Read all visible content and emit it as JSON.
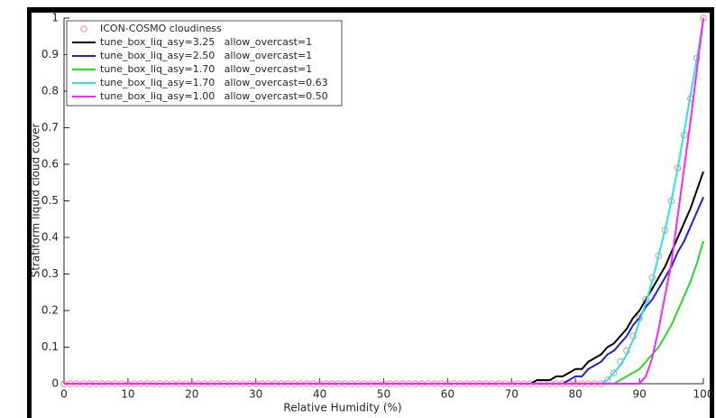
{
  "chart_data": {
    "type": "line",
    "xlabel": "Relative Humidity (%)",
    "ylabel": "Stratiform liquid cloud cover",
    "x": [
      0,
      1,
      2,
      3,
      4,
      5,
      6,
      7,
      8,
      9,
      10,
      11,
      12,
      13,
      14,
      15,
      16,
      17,
      18,
      19,
      20,
      21,
      22,
      23,
      24,
      25,
      26,
      27,
      28,
      29,
      30,
      31,
      32,
      33,
      34,
      35,
      36,
      37,
      38,
      39,
      40,
      41,
      42,
      43,
      44,
      45,
      46,
      47,
      48,
      49,
      50,
      51,
      52,
      53,
      54,
      55,
      56,
      57,
      58,
      59,
      60,
      61,
      62,
      63,
      64,
      65,
      66,
      67,
      68,
      69,
      70,
      71,
      72,
      73,
      74,
      75,
      76,
      77,
      78,
      79,
      80,
      81,
      82,
      83,
      84,
      85,
      86,
      87,
      88,
      89,
      90,
      91,
      92,
      93,
      94,
      95,
      96,
      97,
      98,
      99,
      100
    ],
    "xlim": [
      0,
      100
    ],
    "xticks": [
      0,
      10,
      20,
      30,
      40,
      50,
      60,
      70,
      80,
      90,
      100
    ],
    "ylim": [
      0,
      1
    ],
    "yticks": [
      0,
      0.1,
      0.2,
      0.3,
      0.4,
      0.5,
      0.6,
      0.7,
      0.8,
      0.9,
      1
    ],
    "legend": "upper-left",
    "series": [
      {
        "name": "ICON-COSMO cloudiness",
        "color": "#f08a8a",
        "mode": "markers",
        "values": [
          0,
          0,
          0,
          0,
          0,
          0,
          0,
          0,
          0,
          0,
          0,
          0,
          0,
          0,
          0,
          0,
          0,
          0,
          0,
          0,
          0,
          0,
          0,
          0,
          0,
          0,
          0,
          0,
          0,
          0,
          0,
          0,
          0,
          0,
          0,
          0,
          0,
          0,
          0,
          0,
          0,
          0,
          0,
          0,
          0,
          0,
          0,
          0,
          0,
          0,
          0,
          0,
          0,
          0,
          0,
          0,
          0,
          0,
          0,
          0,
          0,
          0,
          0,
          0,
          0,
          0,
          0,
          0,
          0,
          0,
          0,
          0,
          0,
          0,
          0,
          0,
          0,
          0,
          0,
          0,
          0,
          0,
          0,
          0,
          0,
          0.01,
          0.03,
          0.06,
          0.09,
          0.13,
          0.18,
          0.23,
          0.29,
          0.35,
          0.42,
          0.5,
          0.59,
          0.68,
          0.78,
          0.89,
          1
        ]
      },
      {
        "name": "tune_box_liq_asy=3.25   allow_overcast=1",
        "color": "#000000",
        "mode": "line",
        "values": [
          0,
          0,
          0,
          0,
          0,
          0,
          0,
          0,
          0,
          0,
          0,
          0,
          0,
          0,
          0,
          0,
          0,
          0,
          0,
          0,
          0,
          0,
          0,
          0,
          0,
          0,
          0,
          0,
          0,
          0,
          0,
          0,
          0,
          0,
          0,
          0,
          0,
          0,
          0,
          0,
          0,
          0,
          0,
          0,
          0,
          0,
          0,
          0,
          0,
          0,
          0,
          0,
          0,
          0,
          0,
          0,
          0,
          0,
          0,
          0,
          0,
          0,
          0,
          0,
          0,
          0,
          0,
          0,
          0,
          0,
          0,
          0,
          0,
          0,
          0.01,
          0.01,
          0.01,
          0.02,
          0.02,
          0.03,
          0.04,
          0.04,
          0.06,
          0.07,
          0.08,
          0.1,
          0.11,
          0.13,
          0.15,
          0.18,
          0.2,
          0.23,
          0.26,
          0.29,
          0.32,
          0.36,
          0.4,
          0.44,
          0.48,
          0.53,
          0.58
        ]
      },
      {
        "name": "tune_box_liq_asy=2.50   allow_overcast=1",
        "color": "#1f1fe6",
        "mode": "line",
        "values": [
          0,
          0,
          0,
          0,
          0,
          0,
          0,
          0,
          0,
          0,
          0,
          0,
          0,
          0,
          0,
          0,
          0,
          0,
          0,
          0,
          0,
          0,
          0,
          0,
          0,
          0,
          0,
          0,
          0,
          0,
          0,
          0,
          0,
          0,
          0,
          0,
          0,
          0,
          0,
          0,
          0,
          0,
          0,
          0,
          0,
          0,
          0,
          0,
          0,
          0,
          0,
          0,
          0,
          0,
          0,
          0,
          0,
          0,
          0,
          0,
          0,
          0,
          0,
          0,
          0,
          0,
          0,
          0,
          0,
          0,
          0,
          0,
          0,
          0,
          0,
          0,
          0,
          0,
          0,
          0.01,
          0.02,
          0.02,
          0.04,
          0.05,
          0.06,
          0.08,
          0.09,
          0.11,
          0.13,
          0.16,
          0.18,
          0.21,
          0.23,
          0.26,
          0.29,
          0.32,
          0.36,
          0.39,
          0.43,
          0.47,
          0.51
        ]
      },
      {
        "name": "tune_box_liq_asy=1.70   allow_overcast=1",
        "color": "#22dd22",
        "mode": "line",
        "values": [
          0,
          0,
          0,
          0,
          0,
          0,
          0,
          0,
          0,
          0,
          0,
          0,
          0,
          0,
          0,
          0,
          0,
          0,
          0,
          0,
          0,
          0,
          0,
          0,
          0,
          0,
          0,
          0,
          0,
          0,
          0,
          0,
          0,
          0,
          0,
          0,
          0,
          0,
          0,
          0,
          0,
          0,
          0,
          0,
          0,
          0,
          0,
          0,
          0,
          0,
          0,
          0,
          0,
          0,
          0,
          0,
          0,
          0,
          0,
          0,
          0,
          0,
          0,
          0,
          0,
          0,
          0,
          0,
          0,
          0,
          0,
          0,
          0,
          0,
          0,
          0,
          0,
          0,
          0,
          0,
          0,
          0,
          0,
          0,
          0,
          0,
          0,
          0.01,
          0.02,
          0.03,
          0.04,
          0.06,
          0.08,
          0.1,
          0.13,
          0.16,
          0.2,
          0.24,
          0.28,
          0.33,
          0.39
        ]
      },
      {
        "name": "tune_box_liq_asy=1.70   allow_overcast=0.63",
        "color": "#22e6f2",
        "mode": "line",
        "values": [
          0,
          0,
          0,
          0,
          0,
          0,
          0,
          0,
          0,
          0,
          0,
          0,
          0,
          0,
          0,
          0,
          0,
          0,
          0,
          0,
          0,
          0,
          0,
          0,
          0,
          0,
          0,
          0,
          0,
          0,
          0,
          0,
          0,
          0,
          0,
          0,
          0,
          0,
          0,
          0,
          0,
          0,
          0,
          0,
          0,
          0,
          0,
          0,
          0,
          0,
          0,
          0,
          0,
          0,
          0,
          0,
          0,
          0,
          0,
          0,
          0,
          0,
          0,
          0,
          0,
          0,
          0,
          0,
          0,
          0,
          0,
          0,
          0,
          0,
          0,
          0,
          0,
          0,
          0,
          0,
          0,
          0,
          0,
          0,
          0,
          0.01,
          0.03,
          0.05,
          0.08,
          0.12,
          0.17,
          0.22,
          0.28,
          0.35,
          0.42,
          0.5,
          0.59,
          0.69,
          0.79,
          0.89,
          1
        ]
      },
      {
        "name": "tune_box_liq_asy=1.00   allow_overcast=0.50",
        "color": "#ff22ff",
        "mode": "line",
        "values": [
          0,
          0,
          0,
          0,
          0,
          0,
          0,
          0,
          0,
          0,
          0,
          0,
          0,
          0,
          0,
          0,
          0,
          0,
          0,
          0,
          0,
          0,
          0,
          0,
          0,
          0,
          0,
          0,
          0,
          0,
          0,
          0,
          0,
          0,
          0,
          0,
          0,
          0,
          0,
          0,
          0,
          0,
          0,
          0,
          0,
          0,
          0,
          0,
          0,
          0,
          0,
          0,
          0,
          0,
          0,
          0,
          0,
          0,
          0,
          0,
          0,
          0,
          0,
          0,
          0,
          0,
          0,
          0,
          0,
          0,
          0,
          0,
          0,
          0,
          0,
          0,
          0,
          0,
          0,
          0,
          0,
          0,
          0,
          0,
          0,
          0,
          0,
          0,
          0,
          0,
          0,
          0.02,
          0.07,
          0.15,
          0.24,
          0.33,
          0.46,
          0.59,
          0.72,
          0.86,
          1
        ]
      }
    ]
  }
}
